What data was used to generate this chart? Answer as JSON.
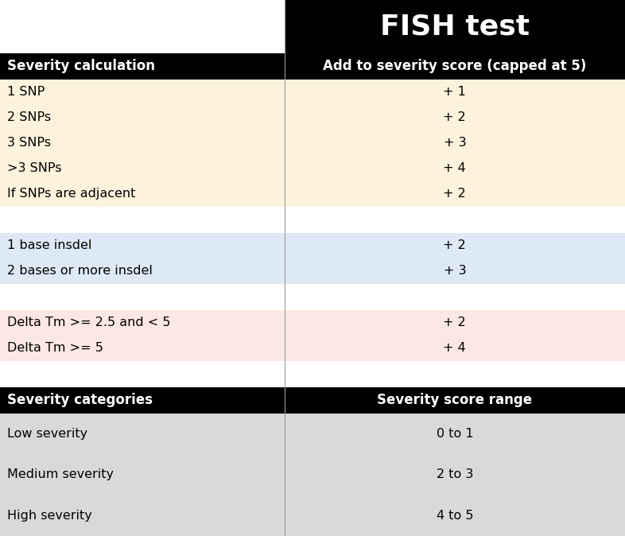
{
  "title": "FISH test",
  "title_bg": "#000000",
  "title_color": "#ffffff",
  "title_fontsize": 26,
  "col_divider": 0.455,
  "header1_text": "Severity calculation",
  "header2_text": "Add to severity score (capped at 5)",
  "header_bg": "#000000",
  "header_color": "#ffffff",
  "header_fontsize": 12,
  "groups": [
    {
      "rows": [
        {
          "left": "1 SNP",
          "right": "+ 1"
        },
        {
          "left": "2 SNPs",
          "right": "+ 2"
        },
        {
          "left": "3 SNPs",
          "right": "+ 3"
        },
        {
          "left": ">3 SNPs",
          "right": "+ 4"
        },
        {
          "left": "If SNPs are adjacent",
          "right": "+ 2"
        }
      ],
      "bg_color": "#fdf3dc"
    },
    {
      "rows": [],
      "bg_color": "#ffffff"
    },
    {
      "rows": [
        {
          "left": "1 base insdel",
          "right": "+ 2"
        },
        {
          "left": "2 bases or more insdel",
          "right": "+ 3"
        }
      ],
      "bg_color": "#ddeaf5"
    },
    {
      "rows": [],
      "bg_color": "#ffffff"
    },
    {
      "rows": [
        {
          "left": "Delta Tm >= 2.5 and < 5",
          "right": "+ 2"
        },
        {
          "left": "Delta Tm >= 5",
          "right": "+ 4"
        }
      ],
      "bg_color": "#fce8e2"
    },
    {
      "rows": [],
      "bg_color": "#ffffff"
    }
  ],
  "categories_header1": "Severity categories",
  "categories_header2": "Severity score range",
  "categories_bg": "#000000",
  "categories_color": "#ffffff",
  "categories_header_fontsize": 12,
  "category_rows": [
    {
      "left": "Low severity",
      "right": "0 to 1"
    },
    {
      "left": "Medium severity",
      "right": "2 to 3"
    },
    {
      "left": "High severity",
      "right": "4 to 5"
    }
  ],
  "category_row_bg": "#d9d9d9",
  "row_fontsize": 11.5,
  "fig_width": 7.86,
  "fig_height": 6.74,
  "dpi": 100
}
